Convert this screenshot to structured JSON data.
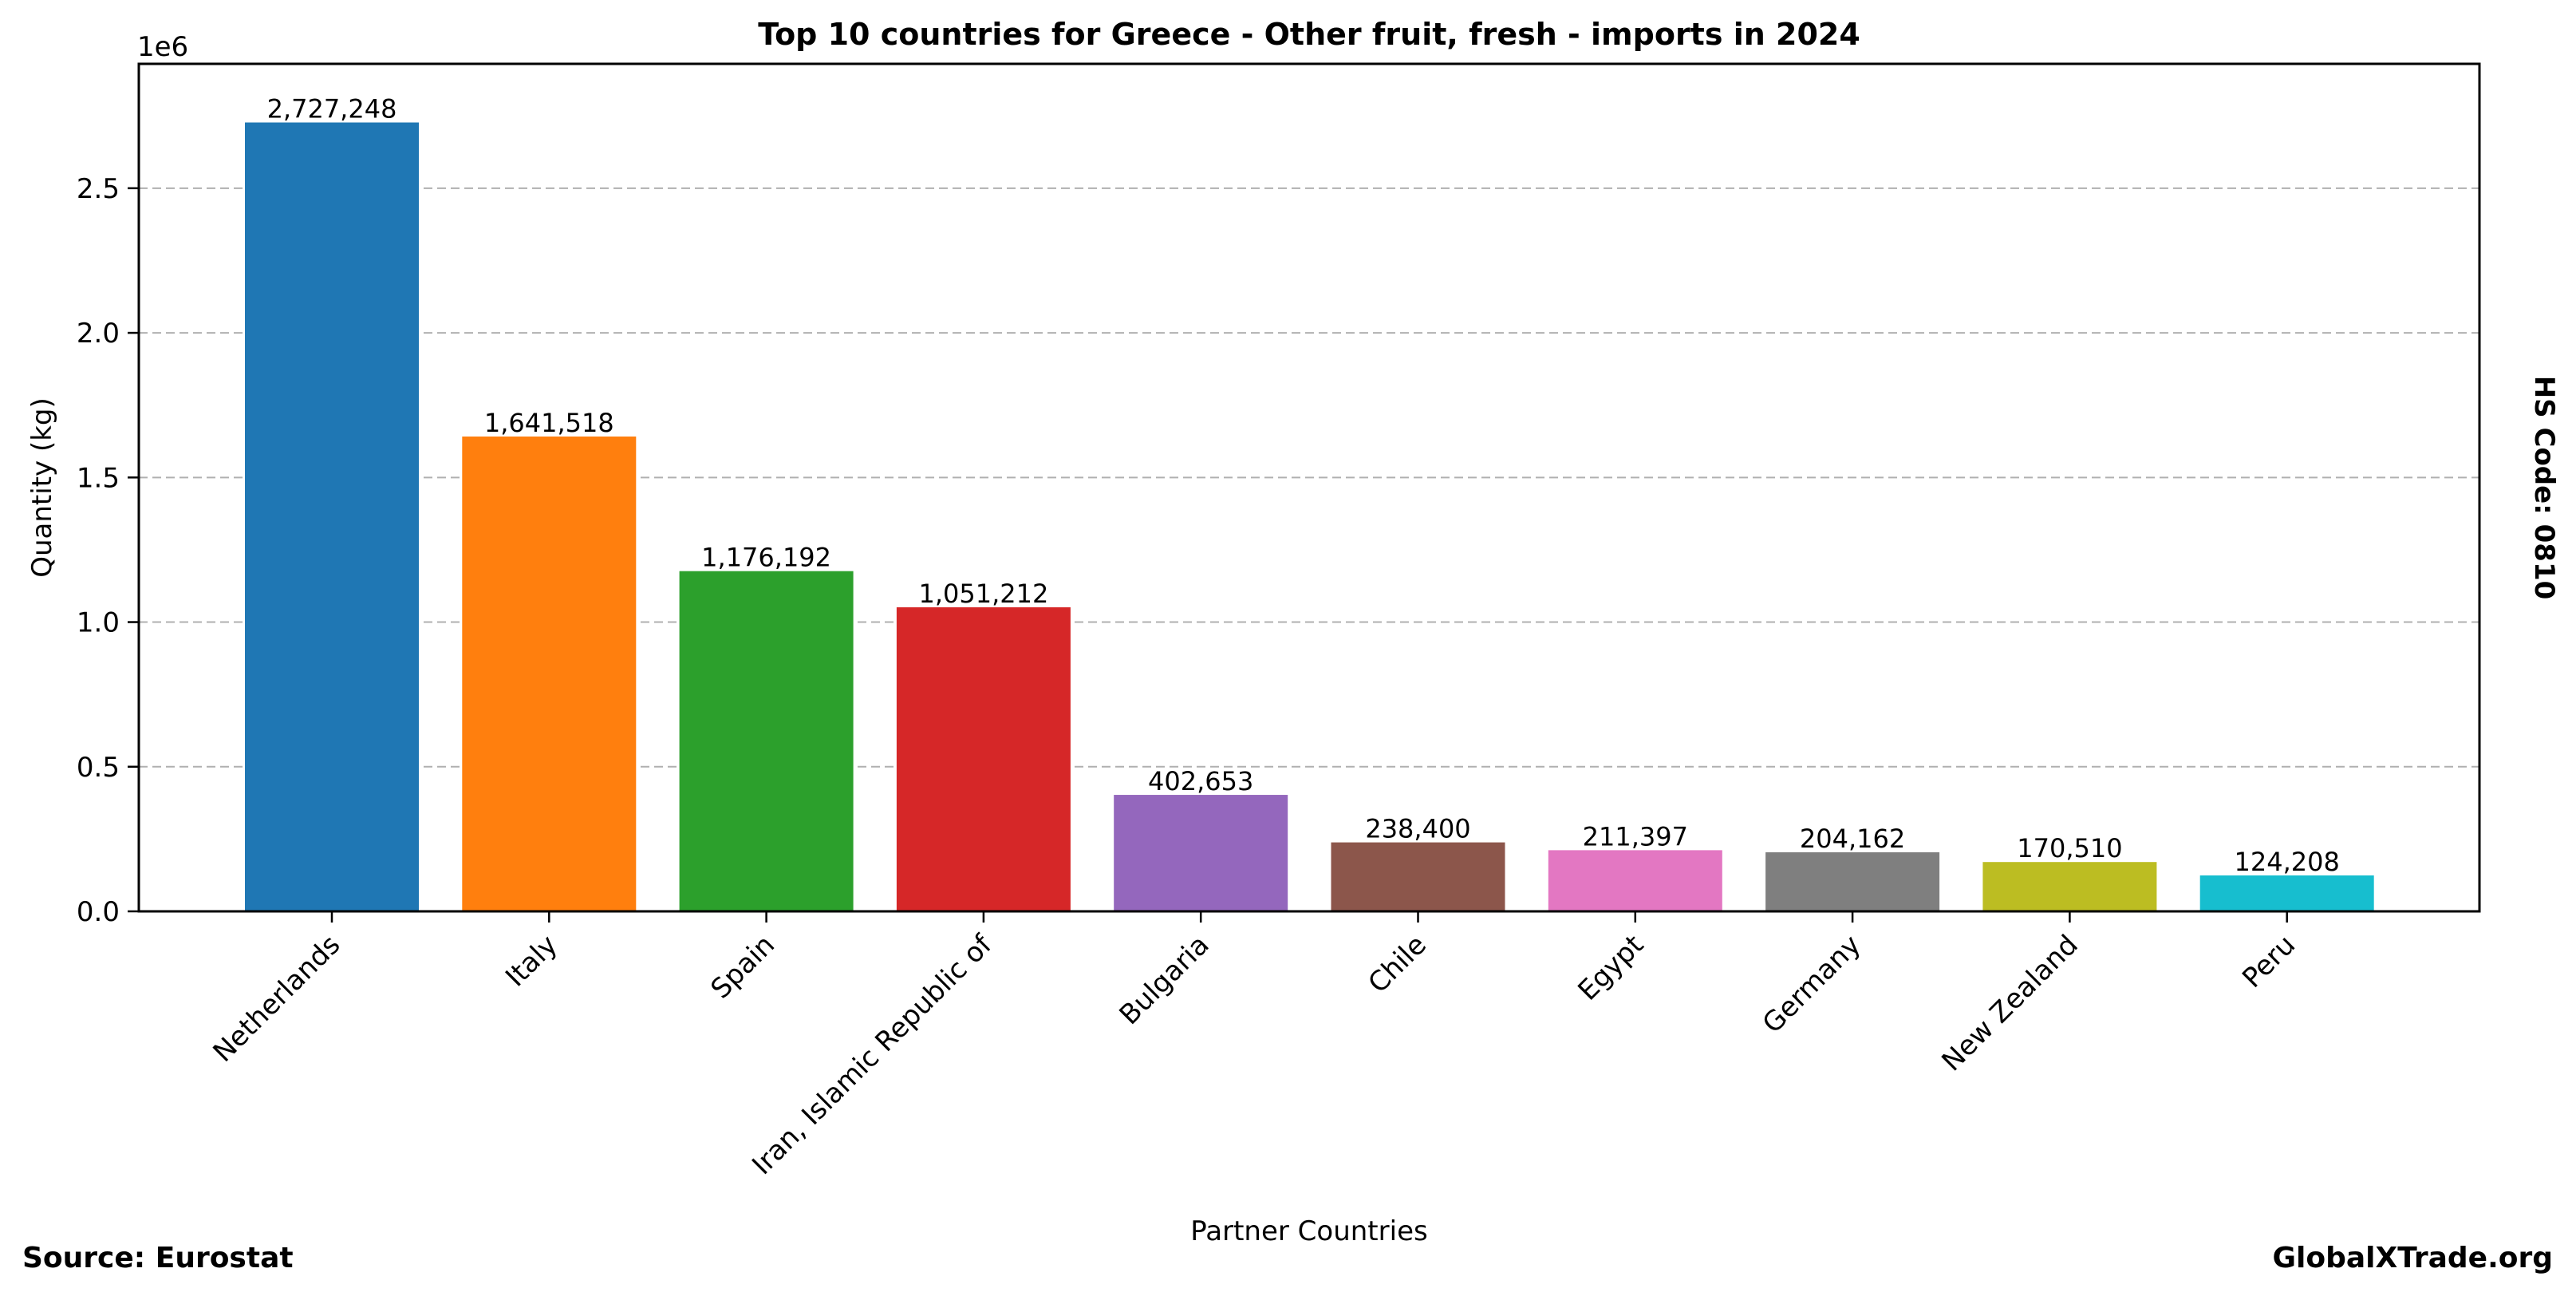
{
  "chart_data": {
    "type": "bar",
    "title": "Top 10 countries for Greece - Other fruit, fresh - imports in 2024",
    "xlabel": "Partner Countries",
    "ylabel": "Quantity (kg)",
    "y_scale_label": "1e6",
    "ylim": [
      0,
      2.93
    ],
    "y_ticks": [
      0.0,
      0.5,
      1.0,
      1.5,
      2.0,
      2.5
    ],
    "y_tick_labels": [
      "0.0",
      "0.5",
      "1.0",
      "1.5",
      "2.0",
      "2.5"
    ],
    "grid": "y-dashed",
    "categories": [
      "Netherlands",
      "Italy",
      "Spain",
      "Iran, Islamic Republic of",
      "Bulgaria",
      "Chile",
      "Egypt",
      "Germany",
      "New Zealand",
      "Peru"
    ],
    "values": [
      2727248,
      1641518,
      1176192,
      1051212,
      402653,
      238400,
      211397,
      204162,
      170510,
      124208
    ],
    "value_labels": [
      "2,727,248",
      "1,641,518",
      "1,176,192",
      "1,051,212",
      "402,653",
      "238,400",
      "211,397",
      "204,162",
      "170,510",
      "124,208"
    ],
    "colors": [
      "#1f77b4",
      "#ff7f0e",
      "#2ca02c",
      "#d62728",
      "#9467bd",
      "#8c564b",
      "#e377c2",
      "#7f7f7f",
      "#bcbd22",
      "#17becf"
    ]
  },
  "annotations": {
    "source": "Source: Eurostat",
    "brand": "GlobalXTrade.org",
    "hs_code": "HS Code: 0810"
  }
}
